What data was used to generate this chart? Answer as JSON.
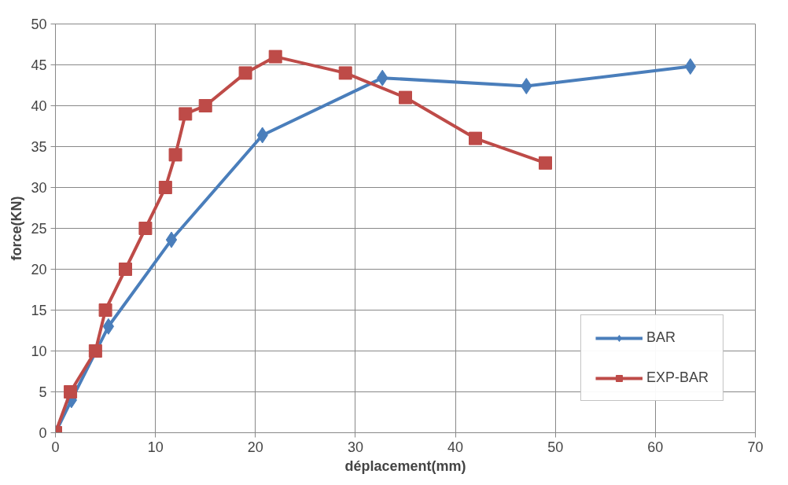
{
  "chart_data": {
    "type": "line",
    "xlabel": "déplacement(mm)",
    "ylabel": "force(KN)",
    "xlim": [
      0,
      70
    ],
    "xticks": [
      0,
      10,
      20,
      30,
      40,
      50,
      60,
      70
    ],
    "ylim": [
      0,
      50
    ],
    "yticks": [
      0,
      5,
      10,
      15,
      20,
      25,
      30,
      35,
      40,
      45,
      50
    ],
    "grid": true,
    "legend": "bottom right",
    "series": [
      {
        "name": "BAR",
        "color": "#4a7ebb",
        "marker": "diamond",
        "x": [
          0,
          1.6,
          5.3,
          11.6,
          20.7,
          32.7,
          47.1,
          63.5
        ],
        "values": [
          0,
          4,
          13,
          23.6,
          36.4,
          43.4,
          42.4,
          44.8
        ]
      },
      {
        "name": "EXP-BAR",
        "color": "#be4b48",
        "marker": "square",
        "x": [
          0,
          1.5,
          4,
          5,
          7,
          9,
          11,
          12,
          13,
          15,
          19,
          22,
          29,
          35,
          42,
          49
        ],
        "values": [
          0,
          5,
          10,
          15,
          20,
          25,
          30,
          34,
          39,
          40,
          44,
          46,
          44,
          41,
          36,
          33
        ]
      }
    ]
  }
}
